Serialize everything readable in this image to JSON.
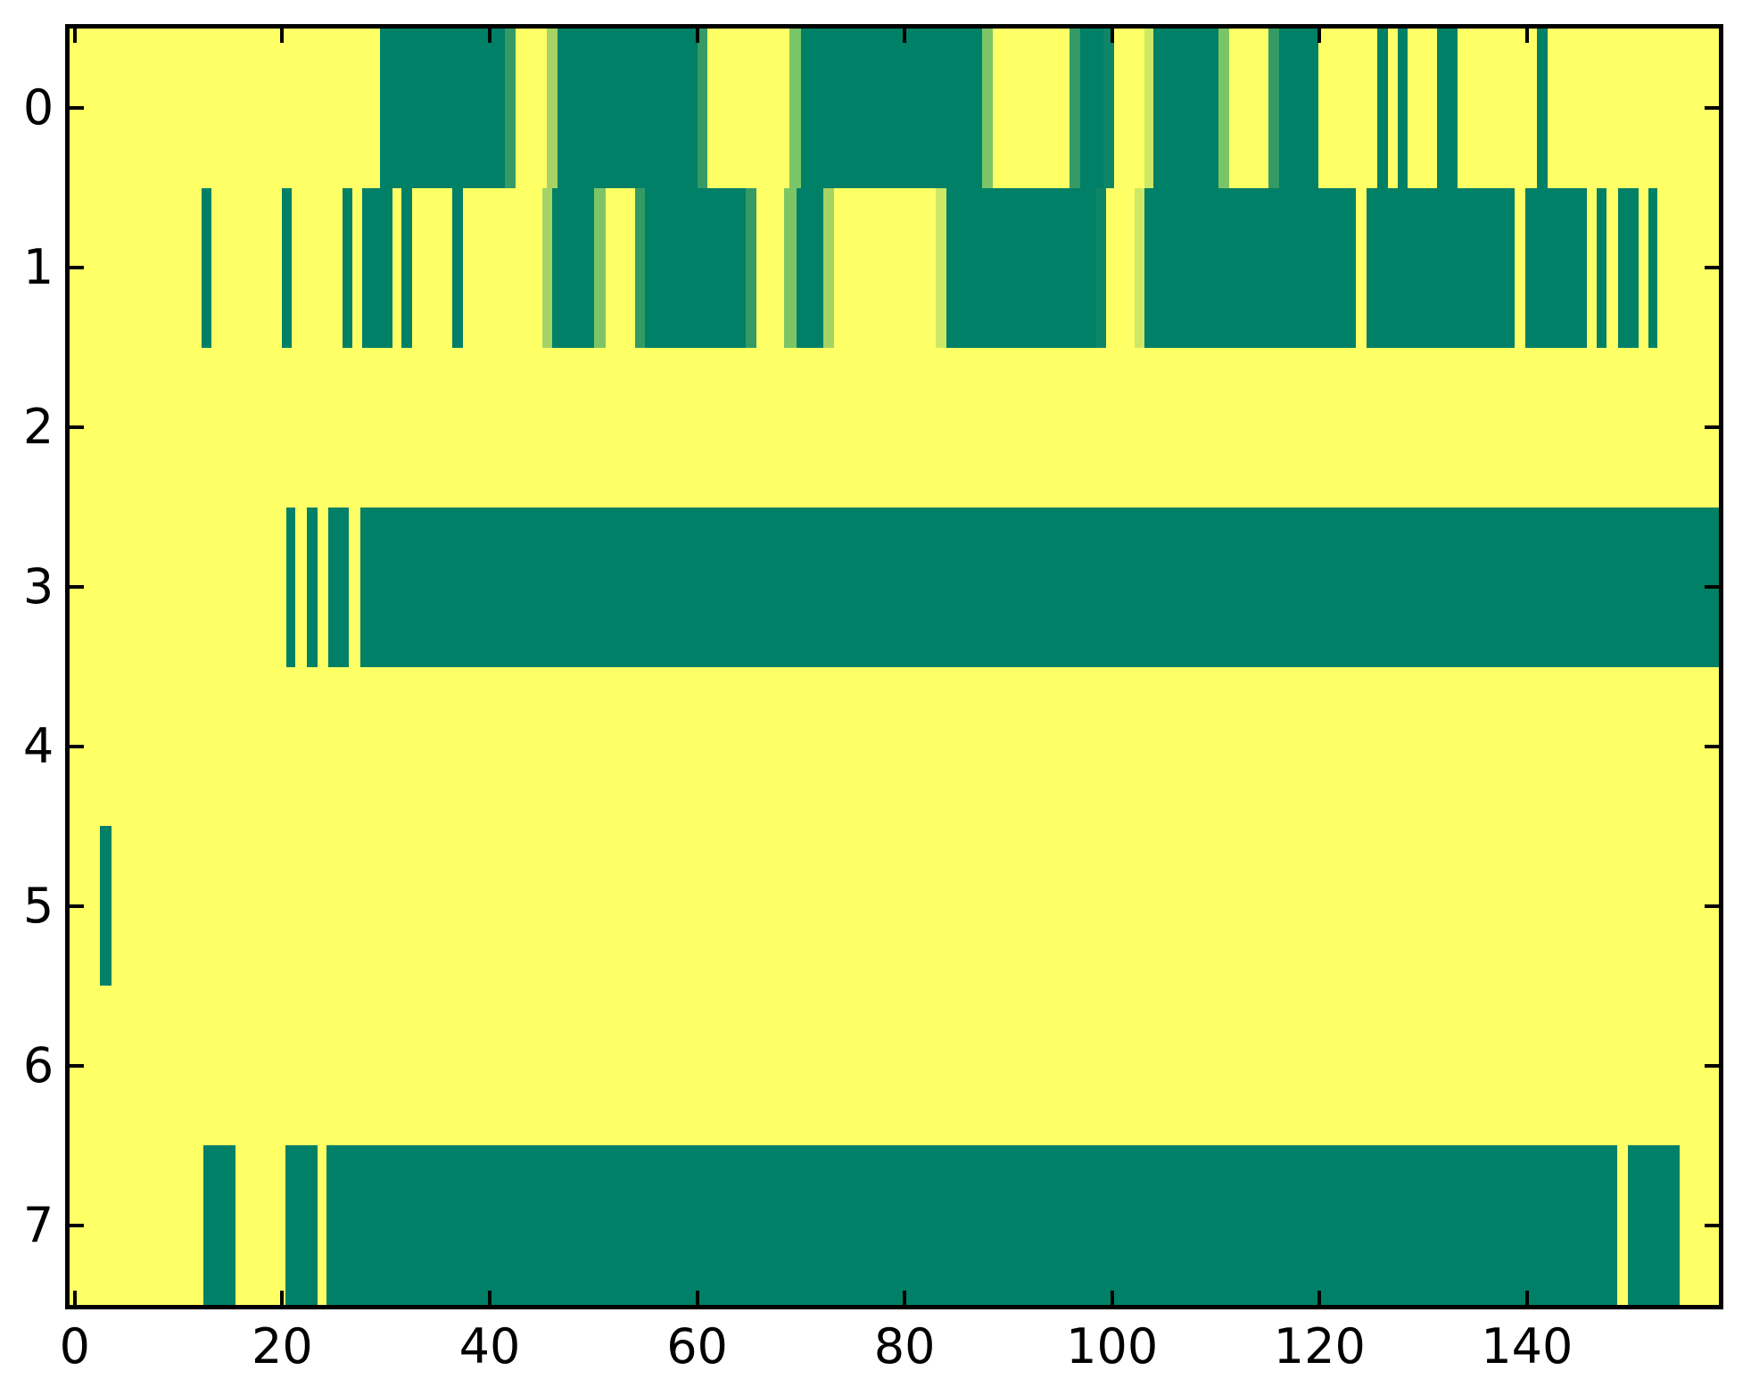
{
  "figure": {
    "background": "#ffffff",
    "plot_background": "#FFFF66",
    "border_color": "#000000"
  },
  "chart_data": {
    "type": "heatmap",
    "title": "",
    "xlabel": "",
    "ylabel": "",
    "n_rows": 8,
    "n_cols": 159,
    "x_range": [
      0,
      159
    ],
    "x_ticks": [
      0,
      20,
      40,
      60,
      80,
      100,
      120,
      140
    ],
    "x_tick_labels": [
      "0",
      "20",
      "40",
      "60",
      "80",
      "100",
      "120",
      "140"
    ],
    "y_ticks": [
      0,
      1,
      2,
      3,
      4,
      5,
      6,
      7
    ],
    "y_tick_labels": [
      "0",
      "1",
      "2",
      "3",
      "4",
      "5",
      "6",
      "7"
    ],
    "grid": false,
    "legend": false,
    "colormap": "summer (yellow = high, dark teal = low)",
    "palette": {
      "yellow": "#FFFF66",
      "teal": "#008066",
      "teal2": "#0E8567",
      "med": "#359A66",
      "grn": "#7CC566",
      "lgrn": "#A5D366",
      "pale": "#CDE865"
    },
    "rows": [
      {
        "row": 0,
        "segments": [
          [
            29.9,
            42.0,
            "teal"
          ],
          [
            42.0,
            43.0,
            "med"
          ],
          [
            46.0,
            47.0,
            "lgrn"
          ],
          [
            47.0,
            60.5,
            "teal"
          ],
          [
            60.5,
            61.5,
            "med"
          ],
          [
            69.4,
            70.5,
            "grn"
          ],
          [
            70.5,
            88.0,
            "teal"
          ],
          [
            88.0,
            89.0,
            "grn"
          ],
          [
            96.4,
            97.4,
            "med"
          ],
          [
            97.4,
            99.7,
            "teal"
          ],
          [
            99.7,
            100.7,
            "teal2"
          ],
          [
            103.6,
            104.5,
            "pale"
          ],
          [
            104.5,
            110.8,
            "teal"
          ],
          [
            110.8,
            111.8,
            "grn"
          ],
          [
            115.6,
            116.6,
            "med"
          ],
          [
            116.6,
            120.4,
            "teal"
          ],
          [
            126.1,
            127.1,
            "teal"
          ],
          [
            128.0,
            129.0,
            "teal"
          ],
          [
            131.8,
            133.8,
            "teal"
          ],
          [
            141.5,
            142.5,
            "teal"
          ]
        ]
      },
      {
        "row": 1,
        "segments": [
          [
            12.7,
            13.7,
            "teal"
          ],
          [
            20.5,
            21.4,
            "teal"
          ],
          [
            26.3,
            27.3,
            "teal"
          ],
          [
            28.2,
            31.1,
            "teal"
          ],
          [
            32.0,
            33.0,
            "teal"
          ],
          [
            36.9,
            37.9,
            "teal"
          ],
          [
            45.6,
            46.5,
            "lgrn"
          ],
          [
            46.5,
            50.6,
            "teal"
          ],
          [
            50.6,
            51.7,
            "grn"
          ],
          [
            54.5,
            55.5,
            "med"
          ],
          [
            55.5,
            65.2,
            "teal"
          ],
          [
            65.2,
            66.2,
            "med"
          ],
          [
            68.9,
            70.1,
            "grn"
          ],
          [
            70.1,
            72.7,
            "teal"
          ],
          [
            72.7,
            73.7,
            "lgrn"
          ],
          [
            83.5,
            84.5,
            "pale"
          ],
          [
            84.5,
            99.0,
            "teal"
          ],
          [
            99.0,
            99.9,
            "teal2"
          ],
          [
            102.7,
            103.6,
            "pale"
          ],
          [
            103.6,
            124.0,
            "teal"
          ],
          [
            125.0,
            139.3,
            "teal"
          ],
          [
            140.3,
            146.3,
            "teal"
          ],
          [
            147.2,
            148.2,
            "teal"
          ],
          [
            149.3,
            151.3,
            "teal"
          ],
          [
            152.2,
            153.1,
            "teal"
          ]
        ]
      },
      {
        "row": 2,
        "segments": []
      },
      {
        "row": 3,
        "segments": [
          [
            20.9,
            21.8,
            "teal"
          ],
          [
            22.9,
            23.9,
            "teal"
          ],
          [
            24.9,
            26.9,
            "teal"
          ],
          [
            28.0,
            159.0,
            "teal"
          ]
        ]
      },
      {
        "row": 4,
        "segments": []
      },
      {
        "row": 5,
        "segments": [
          [
            2.9,
            4.0,
            "teal"
          ]
        ]
      },
      {
        "row": 6,
        "segments": []
      },
      {
        "row": 7,
        "segments": [
          [
            12.9,
            16.0,
            "teal"
          ],
          [
            20.8,
            23.9,
            "teal"
          ],
          [
            24.8,
            149.2,
            "teal"
          ],
          [
            150.2,
            155.2,
            "teal"
          ]
        ]
      }
    ]
  }
}
